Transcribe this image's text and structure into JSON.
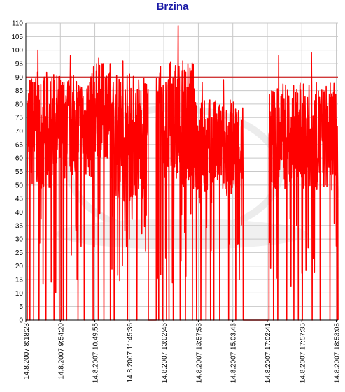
{
  "chart_data": {
    "type": "line",
    "title": "Brzina",
    "xlabel": "",
    "ylabel": "",
    "ylim": [
      0,
      110
    ],
    "yticks": [
      0,
      5,
      10,
      15,
      20,
      25,
      30,
      35,
      40,
      45,
      50,
      55,
      60,
      65,
      70,
      75,
      80,
      85,
      90,
      95,
      100,
      105,
      110
    ],
    "xtick_labels": [
      "14.8.2007 8:18:23",
      "14.8.2007 9:54:20",
      "14.8.2007 10:49:55",
      "14.8.2007 11:45:36",
      "14.8.2007 13:02:46",
      "14.8.2007 13:57:53",
      "14.8.2007 15:03:43",
      "14.8.2007 17:02:41",
      "14.8.2007 17:57:35",
      "14.8.2007 18:53:05"
    ],
    "xtick_positions": [
      0,
      1,
      2,
      3,
      4,
      5,
      6,
      7,
      8,
      9
    ],
    "reference_line": {
      "y": 90
    },
    "grid": true,
    "legend": "none",
    "colors": {
      "series": "#ff0000",
      "title": "#1a1aa6",
      "grid": "#c8c8c8",
      "axis": "#000000",
      "reference": "#cc0000"
    },
    "series": [
      {
        "segments": [
          {
            "x_start": 0.04,
            "x_end": 0.97,
            "mean": 70,
            "spread": 22,
            "peak": 100,
            "dropouts": [
              0.08,
              0.2,
              0.37,
              0.58,
              0.83
            ]
          },
          {
            "x_start": 0.97,
            "x_end": 1.95,
            "mean": 72,
            "spread": 20,
            "peak": 98,
            "dropouts": [
              0.05,
              0.12,
              0.22,
              0.55,
              0.74
            ]
          },
          {
            "x_start": 1.95,
            "x_end": 2.45,
            "mean": 78,
            "spread": 18,
            "peak": 97,
            "dropouts": [
              0.3,
              0.62
            ]
          },
          {
            "x_start": 2.45,
            "x_end": 3.55,
            "mean": 68,
            "spread": 24,
            "peak": 96,
            "dropouts": [
              0.1,
              0.45,
              0.7
            ]
          },
          {
            "x_start": 3.78,
            "x_end": 4.15,
            "mean": 70,
            "spread": 22,
            "peak": 94,
            "dropouts": [
              0.2,
              0.5,
              0.8
            ]
          },
          {
            "x_start": 4.15,
            "x_end": 4.95,
            "mean": 72,
            "spread": 24,
            "peak": 109,
            "dropouts": [
              0.15,
              0.4,
              0.6,
              0.85
            ]
          },
          {
            "x_start": 4.95,
            "x_end": 5.45,
            "mean": 62,
            "spread": 20,
            "peak": 88,
            "dropouts": [
              0.25,
              0.55,
              0.8
            ]
          },
          {
            "x_start": 5.45,
            "x_end": 6.3,
            "mean": 64,
            "spread": 18,
            "peak": 89,
            "dropouts": [
              0.2,
              0.5,
              0.75
            ]
          },
          {
            "x_start": 7.05,
            "x_end": 7.9,
            "mean": 68,
            "spread": 20,
            "peak": 98,
            "dropouts": [
              0.15,
              0.3,
              0.6,
              0.85
            ]
          },
          {
            "x_start": 7.9,
            "x_end": 9.05,
            "mean": 68,
            "spread": 20,
            "peak": 99,
            "dropouts": [
              0.1,
              0.35,
              0.55,
              0.8,
              0.97
            ]
          }
        ]
      }
    ]
  }
}
